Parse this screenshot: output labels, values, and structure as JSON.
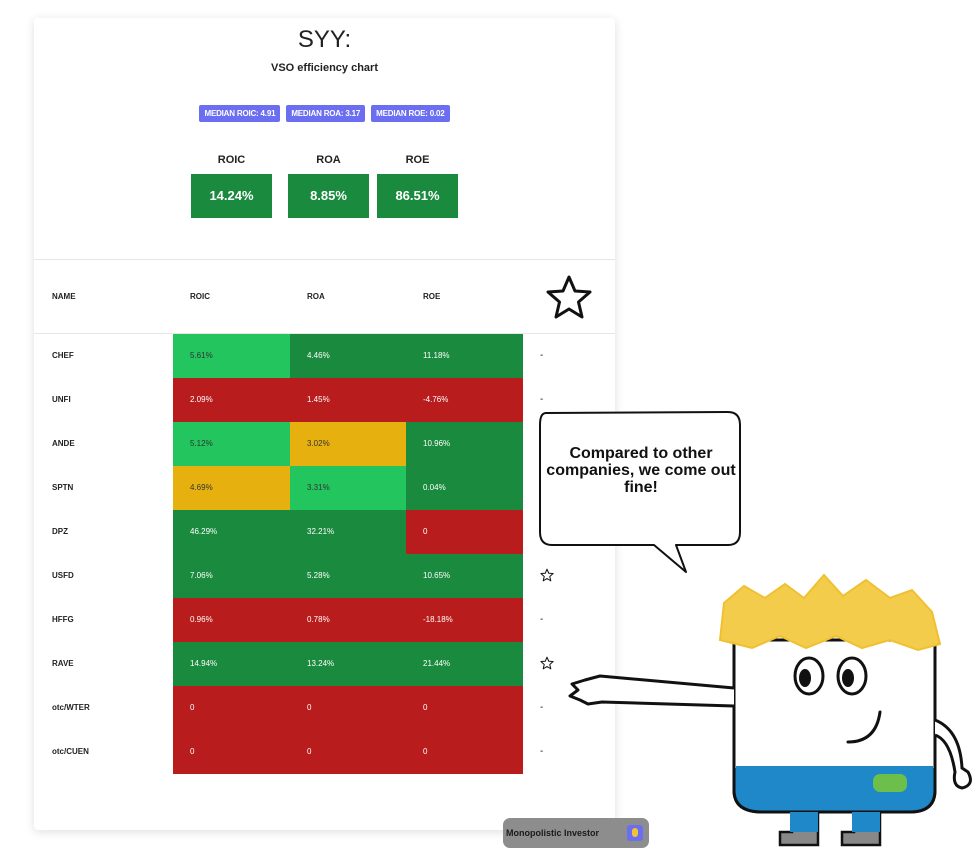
{
  "ticker_title": "SYY:",
  "subtitle": "VSO efficiency chart",
  "medians": [
    {
      "label": "MEDIAN ROIC: 4.91"
    },
    {
      "label": "MEDIAN ROA: 3.17"
    },
    {
      "label": "MEDIAN ROE: 0.02"
    }
  ],
  "summary": [
    {
      "label": "ROIC",
      "value": "14.24%"
    },
    {
      "label": "ROA",
      "value": "8.85%"
    },
    {
      "label": "ROE",
      "value": "86.51%"
    }
  ],
  "colors": {
    "dark_green": "#1a8a3e",
    "light_green": "#22c55e",
    "yellow": "#e6b10e",
    "red": "#b91c1c",
    "badge": "#6b6ef0"
  },
  "chart_data": {
    "type": "table",
    "columns": [
      "NAME",
      "ROIC",
      "ROA",
      "ROE"
    ],
    "rows": [
      {
        "name": "CHEF",
        "roic": "5.61%",
        "roa": "4.46%",
        "roe": "11.18%",
        "roic_color": "light_green",
        "roa_color": "dark_green",
        "roe_color": "dark_green",
        "mark": "-"
      },
      {
        "name": "UNFI",
        "roic": "2.09%",
        "roa": "1.45%",
        "roe": "-4.76%",
        "roic_color": "red",
        "roa_color": "red",
        "roe_color": "red",
        "mark": "-"
      },
      {
        "name": "ANDE",
        "roic": "5.12%",
        "roa": "3.02%",
        "roe": "10.96%",
        "roic_color": "light_green",
        "roa_color": "yellow",
        "roe_color": "dark_green",
        "mark": ""
      },
      {
        "name": "SPTN",
        "roic": "4.69%",
        "roa": "3.31%",
        "roe": "0.04%",
        "roic_color": "yellow",
        "roa_color": "light_green",
        "roe_color": "dark_green",
        "mark": ""
      },
      {
        "name": "DPZ",
        "roic": "46.29%",
        "roa": "32.21%",
        "roe": "0",
        "roic_color": "dark_green",
        "roa_color": "dark_green",
        "roe_color": "red",
        "mark": ""
      },
      {
        "name": "USFD",
        "roic": "7.06%",
        "roa": "5.28%",
        "roe": "10.65%",
        "roic_color": "dark_green",
        "roa_color": "dark_green",
        "roe_color": "dark_green",
        "mark": "star"
      },
      {
        "name": "HFFG",
        "roic": "0.96%",
        "roa": "0.78%",
        "roe": "-18.18%",
        "roic_color": "red",
        "roa_color": "red",
        "roe_color": "red",
        "mark": "-"
      },
      {
        "name": "RAVE",
        "roic": "14.94%",
        "roa": "13.24%",
        "roe": "21.44%",
        "roic_color": "dark_green",
        "roa_color": "dark_green",
        "roe_color": "dark_green",
        "mark": "star"
      },
      {
        "name": "otc/WTER",
        "roic": "0",
        "roa": "0",
        "roe": "0",
        "roic_color": "red",
        "roa_color": "red",
        "roe_color": "red",
        "mark": "-"
      },
      {
        "name": "otc/CUEN",
        "roic": "0",
        "roa": "0",
        "roe": "0",
        "roic_color": "red",
        "roa_color": "red",
        "roe_color": "red",
        "mark": "-"
      }
    ]
  },
  "watermark": "Monopolistic Investor",
  "speech_bubble": "Compared to other companies, we come out fine!",
  "icons": [
    "star-outline-icon",
    "monopolistic-investor-logo-icon"
  ]
}
